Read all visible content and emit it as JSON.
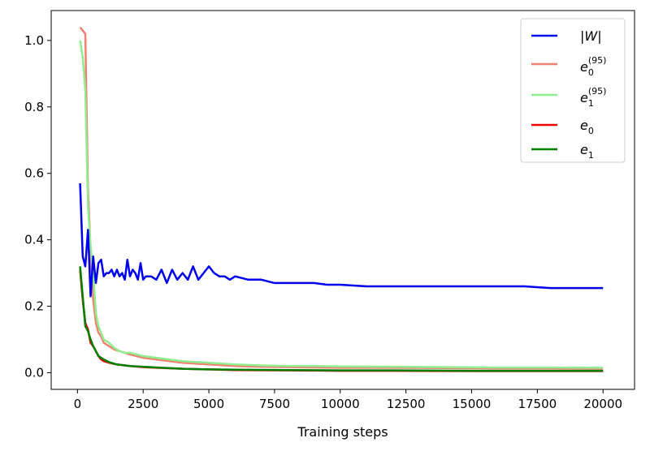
{
  "chart_data": {
    "type": "line",
    "xlabel": "Training steps",
    "ylabel": "",
    "xlim": [
      -1000,
      21200
    ],
    "ylim": [
      -0.05,
      1.09
    ],
    "x_ticks": [
      0,
      2500,
      5000,
      7500,
      10000,
      12500,
      15000,
      17500,
      20000
    ],
    "y_ticks": [
      0.0,
      0.2,
      0.4,
      0.6,
      0.8,
      1.0
    ],
    "x_tick_labels": [
      "0",
      "2500",
      "5000",
      "7500",
      "10000",
      "12500",
      "15000",
      "17500",
      "20000"
    ],
    "y_tick_labels": [
      "0.0",
      "0.2",
      "0.4",
      "0.6",
      "0.8",
      "1.0"
    ],
    "legend_position": "top-right",
    "series": [
      {
        "name": "|W|",
        "color": "#0000ee",
        "x": [
          100,
          200,
          300,
          400,
          500,
          600,
          700,
          800,
          900,
          1000,
          1100,
          1200,
          1300,
          1400,
          1500,
          1600,
          1700,
          1800,
          1900,
          2000,
          2100,
          2200,
          2300,
          2400,
          2500,
          2600,
          2800,
          3000,
          3200,
          3400,
          3600,
          3800,
          4000,
          4200,
          4400,
          4600,
          4800,
          5000,
          5200,
          5400,
          5600,
          5800,
          6000,
          6500,
          7000,
          7500,
          8000,
          8500,
          9000,
          9500,
          10000,
          11000,
          12000,
          13000,
          14000,
          15000,
          16000,
          17000,
          18000,
          19000,
          20000
        ],
        "y": [
          0.57,
          0.35,
          0.32,
          0.43,
          0.23,
          0.35,
          0.27,
          0.33,
          0.34,
          0.29,
          0.3,
          0.3,
          0.31,
          0.29,
          0.31,
          0.29,
          0.3,
          0.28,
          0.34,
          0.29,
          0.31,
          0.3,
          0.28,
          0.33,
          0.28,
          0.29,
          0.29,
          0.28,
          0.31,
          0.27,
          0.31,
          0.28,
          0.3,
          0.28,
          0.32,
          0.28,
          0.3,
          0.32,
          0.3,
          0.29,
          0.29,
          0.28,
          0.29,
          0.28,
          0.28,
          0.27,
          0.27,
          0.27,
          0.27,
          0.265,
          0.265,
          0.26,
          0.26,
          0.26,
          0.26,
          0.26,
          0.26,
          0.26,
          0.255,
          0.255,
          0.255
        ]
      },
      {
        "name": "e0_95",
        "color": "#f08070",
        "x": [
          100,
          300,
          400,
          500,
          600,
          700,
          800,
          900,
          1000,
          1200,
          1400,
          1600,
          1800,
          2000,
          2500,
          3000,
          3500,
          4000,
          5000,
          6000,
          7000,
          8000,
          9000,
          10000,
          12000,
          14000,
          16000,
          18000,
          20000
        ],
        "y": [
          1.04,
          1.02,
          0.55,
          0.37,
          0.22,
          0.15,
          0.12,
          0.11,
          0.09,
          0.08,
          0.07,
          0.065,
          0.06,
          0.055,
          0.045,
          0.04,
          0.035,
          0.03,
          0.025,
          0.02,
          0.018,
          0.017,
          0.016,
          0.015,
          0.015,
          0.014,
          0.013,
          0.013,
          0.012
        ]
      },
      {
        "name": "e1_95",
        "color": "#90ee90",
        "x": [
          100,
          200,
          300,
          400,
          500,
          600,
          700,
          800,
          900,
          1000,
          1200,
          1400,
          1600,
          1800,
          2000,
          2500,
          3000,
          3500,
          4000,
          5000,
          6000,
          7000,
          8000,
          9000,
          10000,
          12000,
          14000,
          16000,
          18000,
          20000
        ],
        "y": [
          1.0,
          0.95,
          0.85,
          0.5,
          0.38,
          0.3,
          0.18,
          0.14,
          0.12,
          0.1,
          0.09,
          0.075,
          0.065,
          0.06,
          0.06,
          0.05,
          0.045,
          0.04,
          0.035,
          0.03,
          0.025,
          0.022,
          0.02,
          0.02,
          0.019,
          0.018,
          0.017,
          0.016,
          0.016,
          0.015
        ]
      },
      {
        "name": "e0",
        "color": "#ee0000",
        "x": [
          100,
          200,
          300,
          400,
          500,
          600,
          700,
          800,
          900,
          1000,
          1200,
          1500,
          2000,
          2500,
          3000,
          4000,
          5000,
          6000,
          8000,
          10000,
          12000,
          15000,
          18000,
          20000
        ],
        "y": [
          0.31,
          0.22,
          0.15,
          0.13,
          0.09,
          0.08,
          0.065,
          0.05,
          0.04,
          0.035,
          0.03,
          0.025,
          0.02,
          0.017,
          0.015,
          0.012,
          0.01,
          0.008,
          0.007,
          0.006,
          0.006,
          0.005,
          0.005,
          0.005
        ]
      },
      {
        "name": "e1",
        "color": "#008000",
        "x": [
          100,
          200,
          300,
          400,
          500,
          600,
          700,
          800,
          900,
          1000,
          1200,
          1500,
          2000,
          2500,
          3000,
          4000,
          5000,
          6000,
          8000,
          10000,
          12000,
          15000,
          18000,
          20000
        ],
        "y": [
          0.32,
          0.23,
          0.14,
          0.125,
          0.1,
          0.08,
          0.065,
          0.05,
          0.045,
          0.04,
          0.032,
          0.025,
          0.02,
          0.018,
          0.016,
          0.012,
          0.01,
          0.009,
          0.008,
          0.007,
          0.007,
          0.006,
          0.006,
          0.006
        ]
      }
    ]
  }
}
